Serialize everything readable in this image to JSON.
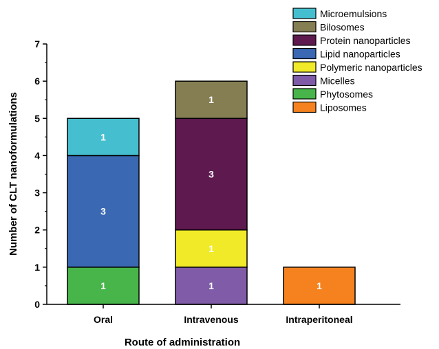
{
  "chart_data": {
    "type": "bar",
    "stacked": true,
    "title": "",
    "xlabel": "Route of administration",
    "ylabel": "Number of CLT nanoformulations",
    "ylim": [
      0,
      7
    ],
    "yticks": [
      "0",
      "1",
      "2",
      "3",
      "4",
      "5",
      "6",
      "7"
    ],
    "categories": [
      "Oral",
      "Intravenous",
      "Intraperitoneal"
    ],
    "legend_position": "top-right",
    "series": [
      {
        "name": "Liposomes",
        "color": "#f5821f",
        "values": [
          0,
          0,
          1
        ],
        "labels": [
          "",
          "",
          "1"
        ]
      },
      {
        "name": "Phytosomes",
        "color": "#47b549",
        "values": [
          1,
          0,
          0
        ],
        "labels": [
          "1",
          "",
          ""
        ]
      },
      {
        "name": "Micelles",
        "color": "#7f5ba8",
        "values": [
          0,
          1,
          0
        ],
        "labels": [
          "",
          "1",
          ""
        ]
      },
      {
        "name": "Polymeric nanoparticles",
        "color": "#f0ea29",
        "values": [
          0,
          1,
          0
        ],
        "labels": [
          "",
          "1",
          ""
        ]
      },
      {
        "name": "Lipid nanoparticles",
        "color": "#3a68b3",
        "values": [
          3,
          0,
          0
        ],
        "labels": [
          "3",
          "",
          ""
        ]
      },
      {
        "name": "Protein nanoparticles",
        "color": "#5e1a4f",
        "values": [
          0,
          3,
          0
        ],
        "labels": [
          "",
          "3",
          ""
        ]
      },
      {
        "name": "Bilosomes",
        "color": "#857e53",
        "values": [
          0,
          1,
          0
        ],
        "labels": [
          "",
          "1",
          ""
        ]
      },
      {
        "name": "Microemulsions",
        "color": "#45bfcf",
        "values": [
          1,
          0,
          0
        ],
        "labels": [
          "1",
          "",
          ""
        ]
      }
    ],
    "legend_order": [
      "Microemulsions",
      "Bilosomes",
      "Protein nanoparticles",
      "Lipid nanoparticles",
      "Polymeric nanoparticles",
      "Micelles",
      "Phytosomes",
      "Liposomes"
    ]
  }
}
